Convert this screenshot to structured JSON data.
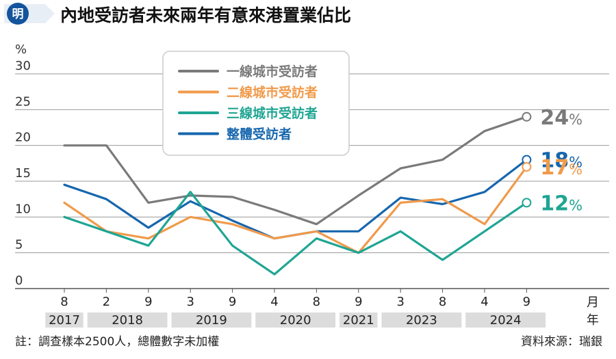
{
  "header": {
    "logo_char": "明",
    "title": "內地受訪者未來兩年有意來港置業佔比"
  },
  "chart_data": {
    "type": "line",
    "title": "內地受訪者未來兩年有意來港置業佔比",
    "y_unit": "%",
    "ylim": [
      0,
      30
    ],
    "y_ticks": [
      0,
      5,
      10,
      15,
      20,
      25,
      30
    ],
    "x_unit_month": "月",
    "x_unit_year": "年",
    "months": [
      "8",
      "2",
      "9",
      "3",
      "9",
      "4",
      "8",
      "9",
      "3",
      "8",
      "4",
      "9"
    ],
    "year_groups": [
      {
        "label": "2017",
        "span": 1
      },
      {
        "label": "2018",
        "span": 2
      },
      {
        "label": "2019",
        "span": 2
      },
      {
        "label": "2020",
        "span": 2
      },
      {
        "label": "2021",
        "span": 1
      },
      {
        "label": "2023",
        "span": 2
      },
      {
        "label": "2024",
        "span": 2
      }
    ],
    "grid": true,
    "legend_position": "top-center",
    "series": [
      {
        "name": "一線城市受訪者",
        "color": "#7a7a7a",
        "values": [
          20,
          20,
          12,
          13,
          12.8,
          11,
          9,
          13,
          16.8,
          18,
          22,
          24
        ],
        "end_label": "24",
        "end_unit": "%"
      },
      {
        "name": "二線城市受訪者",
        "color": "#f09a4a",
        "values": [
          12,
          8,
          7,
          10,
          9,
          7,
          8,
          5,
          12,
          12.5,
          9,
          17
        ],
        "end_label": "17",
        "end_unit": "%"
      },
      {
        "name": "三線城市受訪者",
        "color": "#1fa593",
        "values": [
          10,
          8,
          6,
          13.5,
          6,
          2,
          7,
          5,
          8,
          4,
          8,
          12
        ],
        "end_label": "12",
        "end_unit": "%"
      },
      {
        "name": "整體受訪者",
        "color": "#1666ae",
        "values": [
          14.5,
          12.5,
          8.5,
          12.2,
          9.5,
          7,
          8,
          8,
          12.7,
          11.8,
          13.5,
          18
        ],
        "end_label": "18",
        "end_unit": "%"
      }
    ]
  },
  "footer": {
    "note": "註：調查樣本2500人，總體數字未加權",
    "source": "資料來源：瑞銀"
  }
}
